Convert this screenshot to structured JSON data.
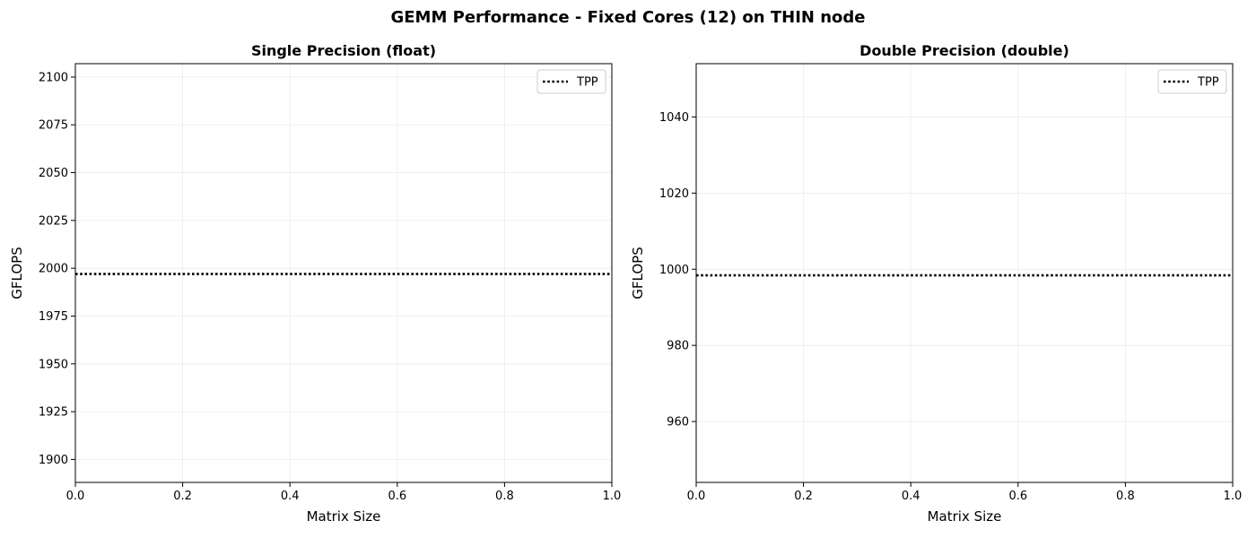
{
  "suptitle": "GEMM Performance - Fixed Cores (12) on THIN node",
  "chart_data": [
    {
      "type": "line",
      "title": "Single Precision (float)",
      "xlabel": "Matrix Size",
      "ylabel": "GFLOPS",
      "xlim": [
        0.0,
        1.0
      ],
      "ylim": [
        1888,
        2107
      ],
      "xticks": [
        "0.0",
        "0.2",
        "0.4",
        "0.6",
        "0.8",
        "1.0"
      ],
      "yticks": [
        1900,
        1925,
        1950,
        1975,
        2000,
        2025,
        2050,
        2075,
        2100
      ],
      "grid": true,
      "legend_position": "top-right",
      "series": [
        {
          "name": "TPP",
          "style": "dotted",
          "color": "#000000",
          "constant": 1997
        }
      ]
    },
    {
      "type": "line",
      "title": "Double Precision (double)",
      "xlabel": "Matrix Size",
      "ylabel": "GFLOPS",
      "xlim": [
        0.0,
        1.0
      ],
      "ylim": [
        944,
        1054
      ],
      "xticks": [
        "0.0",
        "0.2",
        "0.4",
        "0.6",
        "0.8",
        "1.0"
      ],
      "yticks": [
        960,
        980,
        1000,
        1020,
        1040
      ],
      "grid": true,
      "legend_position": "top-right",
      "series": [
        {
          "name": "TPP",
          "style": "dotted",
          "color": "#000000",
          "constant": 998.4
        }
      ]
    }
  ]
}
